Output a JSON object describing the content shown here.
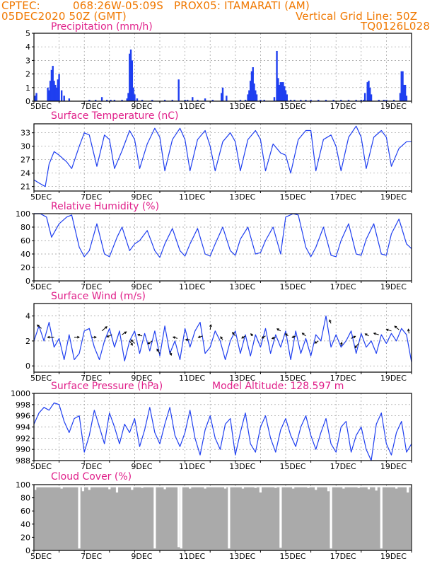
{
  "header": {
    "source": "CPTEC:",
    "coords": "068:26W-05:09S",
    "station": "PROX05: ITAMARATI (AM)",
    "datetime": "05DEC2020 50Z (GMT)",
    "grid_note": "Vertical Grid Line: 50Z",
    "code": "TQ0126L028"
  },
  "colors": {
    "header": "#f07800",
    "title": "#e0208a",
    "series": "#1f3ff0",
    "cloud": "#aaaaaa",
    "grid": "#999999"
  },
  "chart_data": [
    {
      "type": "bar",
      "title": "Precipitation (mm/h)",
      "ylim": [
        0,
        5
      ],
      "yticks": [
        "0",
        "1",
        "2",
        "3",
        "4",
        "5"
      ],
      "x_day_range": [
        5,
        20
      ],
      "xticks": [
        "5DEC",
        "7DEC",
        "9DEC",
        "11DEC",
        "13DEC",
        "15DEC",
        "17DEC",
        "19DEC"
      ],
      "x": [
        5.05,
        5.1,
        5.55,
        5.6,
        5.65,
        5.7,
        5.75,
        5.8,
        5.85,
        5.9,
        5.95,
        6.0,
        6.1,
        6.2,
        6.4,
        7.2,
        7.45,
        7.7,
        7.9,
        8.05,
        8.2,
        8.5,
        8.7,
        8.75,
        8.8,
        8.85,
        8.9,
        8.95,
        9.0,
        9.1,
        9.3,
        9.7,
        10.2,
        10.5,
        10.75,
        11.0,
        11.1,
        11.3,
        11.5,
        11.8,
        12.1,
        12.45,
        12.5,
        12.65,
        13.2,
        13.4,
        13.5,
        13.55,
        13.6,
        13.65,
        13.7,
        13.75,
        13.8,
        13.85,
        14.0,
        14.15,
        14.55,
        14.65,
        14.7,
        14.75,
        14.8,
        14.85,
        14.9,
        14.95,
        15.0,
        15.05,
        15.2,
        15.35,
        15.6,
        15.8,
        16.0,
        16.3,
        16.6,
        16.9,
        17.2,
        17.5,
        17.8,
        18.0,
        18.1,
        18.15,
        18.25,
        18.3,
        18.35,
        18.4,
        18.7,
        18.9,
        19.0,
        19.3,
        19.55,
        19.6,
        19.65,
        19.7,
        19.75,
        19.8
      ],
      "values": [
        0.4,
        0.6,
        1.0,
        0.8,
        1.5,
        2.3,
        2.6,
        1.5,
        1.2,
        1.0,
        1.6,
        2.0,
        0.8,
        0.4,
        0.2,
        0.1,
        0.1,
        0.3,
        0.1,
        0.1,
        0.1,
        0.1,
        0.2,
        0.6,
        3.5,
        3.8,
        3.0,
        1.0,
        0.5,
        0.2,
        0.1,
        0.1,
        0.1,
        0.1,
        1.6,
        0.1,
        0.1,
        0.3,
        0.1,
        0.2,
        0.1,
        0.6,
        1.0,
        0.4,
        0.1,
        0.1,
        0.5,
        0.8,
        1.5,
        2.2,
        2.5,
        1.3,
        0.8,
        0.5,
        0.1,
        0.1,
        0.3,
        3.7,
        1.7,
        1.2,
        1.4,
        1.4,
        1.4,
        1.1,
        0.8,
        0.5,
        0.1,
        0.1,
        0.1,
        0.1,
        0.1,
        0.1,
        0.1,
        0.1,
        0.1,
        0.1,
        0.1,
        0.1,
        0.1,
        0.6,
        1.4,
        1.5,
        1.0,
        0.5,
        0.1,
        0.1,
        0.1,
        0.1,
        0.6,
        2.2,
        2.2,
        1.2,
        1.2,
        0.4
      ]
    },
    {
      "type": "line",
      "title": "Surface Temperature (nC)",
      "ylim": [
        20,
        35
      ],
      "yticks": [
        "21",
        "24",
        "27",
        "30",
        "33"
      ],
      "x_day_range": [
        5,
        20
      ],
      "xticks": [
        "5DEC",
        "7DEC",
        "9DEC",
        "11DEC",
        "13DEC",
        "15DEC",
        "17DEC",
        "19DEC"
      ],
      "x": [
        5.0,
        5.2,
        5.45,
        5.6,
        5.8,
        6.0,
        6.3,
        6.5,
        6.8,
        7.0,
        7.2,
        7.5,
        7.8,
        8.0,
        8.2,
        8.5,
        8.8,
        9.0,
        9.2,
        9.5,
        9.8,
        10.0,
        10.2,
        10.5,
        10.8,
        11.0,
        11.2,
        11.5,
        11.8,
        12.0,
        12.2,
        12.5,
        12.8,
        13.0,
        13.2,
        13.5,
        13.8,
        14.0,
        14.2,
        14.5,
        14.8,
        15.0,
        15.2,
        15.5,
        15.8,
        16.0,
        16.2,
        16.5,
        16.8,
        17.0,
        17.2,
        17.5,
        17.8,
        18.0,
        18.2,
        18.5,
        18.8,
        19.0,
        19.2,
        19.5,
        19.8,
        20.0
      ],
      "values": [
        22.5,
        21.8,
        21.0,
        26.0,
        28.8,
        28.0,
        26.5,
        25.0,
        30.0,
        33.0,
        32.5,
        25.5,
        32.5,
        31.5,
        25.0,
        29.0,
        33.5,
        31.5,
        25.0,
        30.5,
        34.0,
        32.0,
        24.5,
        31.5,
        34.0,
        31.5,
        24.5,
        31.5,
        33.5,
        30.0,
        24.5,
        31.0,
        33.0,
        31.0,
        24.5,
        31.5,
        33.5,
        31.5,
        24.5,
        30.5,
        28.5,
        28.0,
        24.0,
        31.5,
        33.5,
        33.5,
        24.5,
        31.5,
        32.5,
        30.0,
        24.5,
        32.0,
        34.5,
        32.0,
        25.0,
        32.0,
        33.5,
        32.0,
        25.5,
        29.5,
        31.0,
        31.0
      ]
    },
    {
      "type": "line",
      "title": "Relative Humidity (%)",
      "ylim": [
        0,
        100
      ],
      "yticks": [
        "0",
        "20",
        "40",
        "60",
        "80",
        "100"
      ],
      "x_day_range": [
        5,
        20
      ],
      "xticks": [
        "5DEC",
        "7DEC",
        "9DEC",
        "11DEC",
        "13DEC",
        "15DEC",
        "17DEC",
        "19DEC"
      ],
      "x": [
        5.0,
        5.25,
        5.5,
        5.7,
        6.0,
        6.3,
        6.5,
        6.8,
        7.0,
        7.2,
        7.5,
        7.8,
        8.0,
        8.3,
        8.5,
        8.8,
        9.0,
        9.2,
        9.5,
        9.8,
        10.0,
        10.2,
        10.5,
        10.8,
        11.0,
        11.2,
        11.5,
        11.8,
        12.0,
        12.2,
        12.5,
        12.8,
        13.0,
        13.2,
        13.5,
        13.8,
        14.0,
        14.2,
        14.5,
        14.8,
        15.0,
        15.3,
        15.5,
        15.8,
        16.0,
        16.2,
        16.5,
        16.8,
        17.0,
        17.2,
        17.5,
        17.8,
        18.0,
        18.2,
        18.5,
        18.8,
        19.0,
        19.2,
        19.5,
        19.8,
        20.0
      ],
      "values": [
        100,
        100,
        95,
        65,
        85,
        95,
        98,
        50,
        36,
        45,
        85,
        40,
        36,
        65,
        80,
        45,
        55,
        60,
        75,
        45,
        35,
        55,
        78,
        45,
        37,
        55,
        78,
        40,
        37,
        55,
        80,
        45,
        38,
        62,
        80,
        40,
        42,
        60,
        80,
        40,
        95,
        100,
        98,
        50,
        36,
        50,
        80,
        38,
        36,
        60,
        85,
        40,
        38,
        62,
        85,
        40,
        38,
        70,
        92,
        55,
        48
      ]
    },
    {
      "type": "line",
      "title": "Surface Wind (m/s)",
      "ylim": [
        -0.5,
        5
      ],
      "yticks": [
        "0",
        "2",
        "4"
      ],
      "x_day_range": [
        5,
        20
      ],
      "xticks": [
        "5DEC",
        "7DEC",
        "9DEC",
        "11DEC",
        "13DEC",
        "15DEC",
        "17DEC",
        "19DEC"
      ],
      "x": [
        5.0,
        5.2,
        5.4,
        5.6,
        5.8,
        6.0,
        6.2,
        6.4,
        6.6,
        6.8,
        7.0,
        7.2,
        7.4,
        7.6,
        7.8,
        8.0,
        8.2,
        8.4,
        8.6,
        8.8,
        9.0,
        9.2,
        9.4,
        9.6,
        9.8,
        10.0,
        10.2,
        10.4,
        10.6,
        10.8,
        11.0,
        11.2,
        11.4,
        11.6,
        11.8,
        12.0,
        12.2,
        12.4,
        12.6,
        12.8,
        13.0,
        13.2,
        13.4,
        13.6,
        13.8,
        14.0,
        14.2,
        14.4,
        14.6,
        14.8,
        15.0,
        15.2,
        15.4,
        15.6,
        15.8,
        16.0,
        16.2,
        16.4,
        16.6,
        16.8,
        17.0,
        17.2,
        17.4,
        17.6,
        17.8,
        18.0,
        18.2,
        18.4,
        18.6,
        18.8,
        19.0,
        19.2,
        19.4,
        19.6,
        19.8,
        20.0
      ],
      "values": [
        2.0,
        3.2,
        2.0,
        3.5,
        1.5,
        2.2,
        0.5,
        2.5,
        0.5,
        1.0,
        2.8,
        3.0,
        1.5,
        0.5,
        2.0,
        3.0,
        1.5,
        2.8,
        0.4,
        2.0,
        2.8,
        1.0,
        2.6,
        1.2,
        2.8,
        0.8,
        3.2,
        1.0,
        2.0,
        0.5,
        3.0,
        1.5,
        2.8,
        3.5,
        1.0,
        1.5,
        2.8,
        2.0,
        0.5,
        2.0,
        2.8,
        1.0,
        2.5,
        0.8,
        2.5,
        1.5,
        3.0,
        1.0,
        2.5,
        1.5,
        2.8,
        0.5,
        2.8,
        1.0,
        2.2,
        0.8,
        2.5,
        2.0,
        4.0,
        1.5,
        2.5,
        1.5,
        2.0,
        2.8,
        1.0,
        2.6,
        1.5,
        2.0,
        1.0,
        2.5,
        1.8,
        2.6,
        2.0,
        3.0,
        2.5,
        0.3
      ],
      "arrows": [
        {
          "x": 5.3,
          "y": 3.0,
          "dx": -6,
          "dy": -5
        },
        {
          "x": 5.8,
          "y": 2.3,
          "dx": -9,
          "dy": 0
        },
        {
          "x": 6.6,
          "y": 2.3,
          "dx": 7,
          "dy": 0
        },
        {
          "x": 7.3,
          "y": 2.3,
          "dx": 6,
          "dy": 0
        },
        {
          "x": 7.7,
          "y": 2.8,
          "dx": 7,
          "dy": -6
        },
        {
          "x": 8.1,
          "y": 2.5,
          "dx": -7,
          "dy": 3
        },
        {
          "x": 8.5,
          "y": 2.5,
          "dx": 6,
          "dy": -4
        },
        {
          "x": 8.8,
          "y": 2.0,
          "dx": 4,
          "dy": 6
        },
        {
          "x": 9.0,
          "y": 1.8,
          "dx": -5,
          "dy": -5
        },
        {
          "x": 9.3,
          "y": 2.4,
          "dx": -6,
          "dy": -2
        },
        {
          "x": 9.7,
          "y": 2.0,
          "dx": -6,
          "dy": 4
        },
        {
          "x": 10.0,
          "y": 1.0,
          "dx": -4,
          "dy": -6
        },
        {
          "x": 10.4,
          "y": 1.2,
          "dx": 2,
          "dy": 6
        },
        {
          "x": 10.7,
          "y": 2.2,
          "dx": -6,
          "dy": -2
        },
        {
          "x": 11.2,
          "y": 2.1,
          "dx": -6,
          "dy": 0
        },
        {
          "x": 11.7,
          "y": 2.4,
          "dx": -6,
          "dy": 2
        },
        {
          "x": 12.0,
          "y": 2.9,
          "dx": 1,
          "dy": -7
        },
        {
          "x": 12.5,
          "y": 2.1,
          "dx": -3,
          "dy": -4
        },
        {
          "x": 13.0,
          "y": 2.4,
          "dx": -4,
          "dy": -5
        },
        {
          "x": 13.4,
          "y": 2.4,
          "dx": -5,
          "dy": 3
        },
        {
          "x": 13.7,
          "y": 2.4,
          "dx": -3,
          "dy": -3
        },
        {
          "x": 14.2,
          "y": 2.4,
          "dx": -5,
          "dy": 3
        },
        {
          "x": 14.6,
          "y": 2.3,
          "dx": -5,
          "dy": 2
        },
        {
          "x": 14.8,
          "y": 2.8,
          "dx": -5,
          "dy": -3
        },
        {
          "x": 15.1,
          "y": 2.4,
          "dx": -4,
          "dy": -3
        },
        {
          "x": 15.4,
          "y": 2.4,
          "dx": -5,
          "dy": 2
        },
        {
          "x": 15.8,
          "y": 2.4,
          "dx": -5,
          "dy": -4
        },
        {
          "x": 16.3,
          "y": 2.0,
          "dx": -5,
          "dy": 3
        },
        {
          "x": 16.8,
          "y": 3.4,
          "dx": -2,
          "dy": -5
        },
        {
          "x": 17.2,
          "y": 1.6,
          "dx": 1,
          "dy": -5
        },
        {
          "x": 17.6,
          "y": 2.2,
          "dx": 6,
          "dy": -3
        },
        {
          "x": 17.9,
          "y": 1.8,
          "dx": -5,
          "dy": 6
        },
        {
          "x": 18.3,
          "y": 2.4,
          "dx": -5,
          "dy": -3
        },
        {
          "x": 18.7,
          "y": 2.5,
          "dx": -7,
          "dy": -2
        },
        {
          "x": 19.2,
          "y": 2.8,
          "dx": -7,
          "dy": -2
        },
        {
          "x": 19.5,
          "y": 2.9,
          "dx": -6,
          "dy": -5
        },
        {
          "x": 19.9,
          "y": 2.6,
          "dx": -1,
          "dy": -6
        }
      ]
    },
    {
      "type": "line",
      "title": "Surface Pressure (hPa)",
      "subtitle": "Model Altitude: 128.597  m",
      "ylim": [
        988,
        1000
      ],
      "yticks": [
        "988",
        "990",
        "992",
        "994",
        "996",
        "998",
        "1000"
      ],
      "x_day_range": [
        5,
        20
      ],
      "xticks": [
        "5DEC",
        "7DEC",
        "9DEC",
        "11DEC",
        "13DEC",
        "15DEC",
        "17DEC",
        "19DEC"
      ],
      "x": [
        5.0,
        5.2,
        5.4,
        5.6,
        5.8,
        6.0,
        6.2,
        6.4,
        6.6,
        6.8,
        7.0,
        7.2,
        7.4,
        7.6,
        7.8,
        8.0,
        8.2,
        8.4,
        8.6,
        8.8,
        9.0,
        9.2,
        9.4,
        9.6,
        9.8,
        10.0,
        10.2,
        10.4,
        10.6,
        10.8,
        11.0,
        11.2,
        11.4,
        11.6,
        11.8,
        12.0,
        12.2,
        12.4,
        12.6,
        12.8,
        13.0,
        13.2,
        13.4,
        13.6,
        13.8,
        14.0,
        14.2,
        14.4,
        14.6,
        14.8,
        15.0,
        15.2,
        15.4,
        15.6,
        15.8,
        16.0,
        16.2,
        16.4,
        16.6,
        16.8,
        17.0,
        17.2,
        17.4,
        17.6,
        17.8,
        18.0,
        18.2,
        18.4,
        18.6,
        18.8,
        19.0,
        19.2,
        19.4,
        19.6,
        19.8,
        20.0
      ],
      "values": [
        994.5,
        996.5,
        997.5,
        997.0,
        998.3,
        998.0,
        995.0,
        993.0,
        995.5,
        996.0,
        989.5,
        992.5,
        997.0,
        994.0,
        991.0,
        996.5,
        994.0,
        991.0,
        994.5,
        993.0,
        995.5,
        990.5,
        993.5,
        997.5,
        993.0,
        991.0,
        994.5,
        997.5,
        992.5,
        990.5,
        993.0,
        997.0,
        992.0,
        989.0,
        993.5,
        996.0,
        992.0,
        990.0,
        994.5,
        995.5,
        989.0,
        993.0,
        996.5,
        991.0,
        989.5,
        994.0,
        996.0,
        992.0,
        989.5,
        993.5,
        995.5,
        992.5,
        990.5,
        994.0,
        996.0,
        992.5,
        990.0,
        993.0,
        995.5,
        991.0,
        989.5,
        994.0,
        995.0,
        989.5,
        992.5,
        994.0,
        990.0,
        988.0,
        994.5,
        996.5,
        991.0,
        989.0,
        993.0,
        995.0,
        989.5,
        991.0
      ]
    },
    {
      "type": "bar",
      "title": "Cloud Cover (%)",
      "ylim": [
        0,
        100
      ],
      "yticks": [
        "0",
        "20",
        "40",
        "60",
        "80",
        "100"
      ],
      "x_day_range": [
        5,
        20
      ],
      "xticks": [
        "5DEC",
        "7DEC",
        "9DEC",
        "11DEC",
        "13DEC",
        "15DEC",
        "17DEC",
        "19DEC"
      ],
      "fill_default": 96,
      "dips": [
        {
          "x": 5.05,
          "v": 92
        },
        {
          "x": 6.1,
          "v": 94
        },
        {
          "x": 6.8,
          "v": 3
        },
        {
          "x": 6.95,
          "v": 90
        },
        {
          "x": 7.2,
          "v": 92
        },
        {
          "x": 8.0,
          "v": 93
        },
        {
          "x": 8.3,
          "v": 88
        },
        {
          "x": 8.9,
          "v": 92
        },
        {
          "x": 9.3,
          "v": 95
        },
        {
          "x": 9.8,
          "v": 3
        },
        {
          "x": 10.2,
          "v": 93
        },
        {
          "x": 10.75,
          "v": 5
        },
        {
          "x": 10.85,
          "v": 3
        },
        {
          "x": 11.2,
          "v": 94
        },
        {
          "x": 11.8,
          "v": 94
        },
        {
          "x": 12.6,
          "v": 94
        },
        {
          "x": 12.75,
          "v": 3
        },
        {
          "x": 13.3,
          "v": 94
        },
        {
          "x": 13.8,
          "v": 95
        },
        {
          "x": 14.0,
          "v": 88
        },
        {
          "x": 14.6,
          "v": 95
        },
        {
          "x": 14.8,
          "v": 4
        },
        {
          "x": 15.3,
          "v": 94
        },
        {
          "x": 15.9,
          "v": 95
        },
        {
          "x": 16.2,
          "v": 92
        },
        {
          "x": 16.7,
          "v": 90
        },
        {
          "x": 16.8,
          "v": 3
        },
        {
          "x": 17.3,
          "v": 94
        },
        {
          "x": 17.9,
          "v": 95
        },
        {
          "x": 18.3,
          "v": 93
        },
        {
          "x": 18.6,
          "v": 91
        },
        {
          "x": 18.8,
          "v": 3
        },
        {
          "x": 19.4,
          "v": 94
        },
        {
          "x": 19.85,
          "v": 88
        }
      ]
    }
  ]
}
